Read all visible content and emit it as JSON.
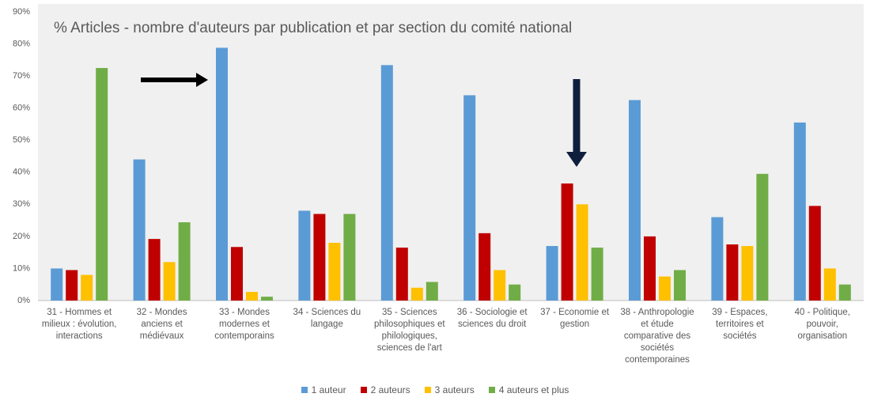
{
  "chart_data": {
    "type": "bar",
    "title": "% Articles - nombre d'auteurs par publication et par section du comité national",
    "categories": [
      "31 - Hommes et milieux : évolution, interactions",
      "32 - Mondes anciens et médiévaux",
      "33 - Mondes modernes et contemporains",
      "34 - Sciences du langage",
      "35 - Sciences philosophiques et philologiques, sciences de l'art",
      "36 - Sociologie et sciences du droit",
      "37 - Economie et gestion",
      "38 - Anthropologie et étude comparative des sociétés contemporaines",
      "39 - Espaces, territoires et sociétés",
      "40 - Politique, pouvoir, organisation"
    ],
    "series": [
      {
        "name": "1 auteur",
        "color": "#5b9bd5",
        "values": [
          10,
          44,
          78.8,
          28,
          73.4,
          64,
          17,
          62.5,
          26,
          55.5
        ]
      },
      {
        "name": "2 auteurs",
        "color": "#c00000",
        "values": [
          9.5,
          19.2,
          16.7,
          27,
          16.5,
          21,
          36.5,
          20,
          17.5,
          29.5
        ]
      },
      {
        "name": "3 auteurs",
        "color": "#ffc000",
        "values": [
          8,
          12,
          2.7,
          18,
          4,
          9.5,
          30,
          7.5,
          17,
          10
        ]
      },
      {
        "name": "4 auteurs et plus",
        "color": "#70ad47",
        "values": [
          72.5,
          24.4,
          1.2,
          27,
          5.8,
          5,
          16.5,
          9.5,
          39.5,
          5
        ]
      }
    ],
    "ylim": [
      0,
      90
    ],
    "yticks": [
      {
        "value": 0,
        "label": "0%"
      },
      {
        "value": 10,
        "label": "10%"
      },
      {
        "value": 20,
        "label": "20%"
      },
      {
        "value": 30,
        "label": "30%"
      },
      {
        "value": 40,
        "label": "40%"
      },
      {
        "value": 50,
        "label": "50%"
      },
      {
        "value": 60,
        "label": "60%"
      },
      {
        "value": 70,
        "label": "70%"
      },
      {
        "value": 80,
        "label": "80%"
      },
      {
        "value": 90,
        "label": "90%"
      }
    ],
    "grid": false,
    "legend": "bottom"
  }
}
